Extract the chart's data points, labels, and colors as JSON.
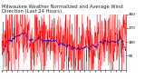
{
  "title": "Milwaukee Weather Normalized and Average Wind Direction (Last 24 Hours)",
  "background_color": "#ffffff",
  "plot_bg_color": "#ffffff",
  "red_color": "#ff0000",
  "blue_color": "#0000cc",
  "grid_color": "#c8c8c8",
  "n_points": 576,
  "ylim": [
    0,
    360
  ],
  "yticks": [
    90,
    180,
    270,
    360
  ],
  "ytick_labels": [
    "90",
    "180",
    "270",
    "360"
  ],
  "xlim": [
    0,
    576
  ],
  "n_xticks": 25,
  "title_fontsize": 3.8,
  "tick_fontsize": 3.0,
  "red_lw": 0.25,
  "blue_lw": 0.6,
  "avg_window": 48,
  "noise_scale": 120,
  "base_mean": 185,
  "seed": 7
}
